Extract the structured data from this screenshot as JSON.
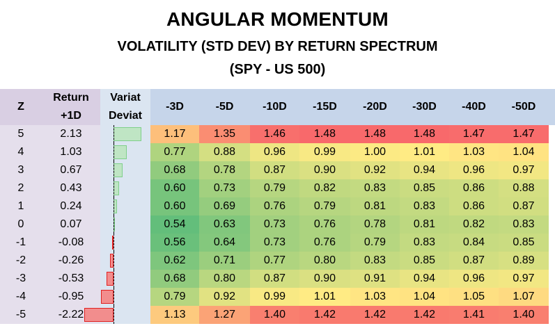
{
  "title": "ANGULAR MOMENTUM",
  "subtitle": "VOLATILITY (STD DEV) BY RETURN SPECTRUM",
  "subtitle2": "(SPY - US 500)",
  "headers": {
    "z": "Z",
    "return_l1": "Return",
    "return_l2": "+1D",
    "variat_l1": "Variat",
    "variat_l2": "Deviat",
    "periods": [
      "-3D",
      "-5D",
      "-10D",
      "-15D",
      "-20D",
      "-30D",
      "-40D",
      "-50D"
    ]
  },
  "colors": {
    "heat_low": "#63be7b",
    "heat_mid": "#ffeb84",
    "heat_high": "#f8696b",
    "bar_positive": "#bfe5c4",
    "bar_negative": "#f28d8d"
  },
  "chart_data": {
    "type": "heatmap",
    "title": "ANGULAR MOMENTUM",
    "subtitle": "VOLATILITY (STD DEV) BY RETURN SPECTRUM (SPY - US 500)",
    "columns": [
      "-3D",
      "-5D",
      "-10D",
      "-15D",
      "-20D",
      "-30D",
      "-40D",
      "-50D"
    ],
    "rows": [
      {
        "z": "5",
        "ret": "2.13",
        "ret_value": 2.13,
        "values": [
          1.17,
          1.35,
          1.46,
          1.48,
          1.48,
          1.48,
          1.47,
          1.47
        ]
      },
      {
        "z": "4",
        "ret": "1.03",
        "ret_value": 1.03,
        "values": [
          0.77,
          0.88,
          0.96,
          0.99,
          1.0,
          1.01,
          1.03,
          1.04
        ]
      },
      {
        "z": "3",
        "ret": "0.67",
        "ret_value": 0.67,
        "values": [
          0.68,
          0.78,
          0.87,
          0.9,
          0.92,
          0.94,
          0.96,
          0.97
        ]
      },
      {
        "z": "2",
        "ret": "0.43",
        "ret_value": 0.43,
        "values": [
          0.6,
          0.73,
          0.79,
          0.82,
          0.83,
          0.85,
          0.86,
          0.88
        ]
      },
      {
        "z": "1",
        "ret": "0.24",
        "ret_value": 0.24,
        "values": [
          0.6,
          0.69,
          0.76,
          0.79,
          0.81,
          0.83,
          0.86,
          0.87
        ]
      },
      {
        "z": "0",
        "ret": "0.07",
        "ret_value": 0.07,
        "values": [
          0.54,
          0.63,
          0.73,
          0.76,
          0.78,
          0.81,
          0.82,
          0.83
        ]
      },
      {
        "z": "-1",
        "ret": "-0.08",
        "ret_value": -0.08,
        "values": [
          0.56,
          0.64,
          0.73,
          0.76,
          0.79,
          0.83,
          0.84,
          0.85
        ]
      },
      {
        "z": "-2",
        "ret": "-0.26",
        "ret_value": -0.26,
        "values": [
          0.62,
          0.71,
          0.77,
          0.8,
          0.83,
          0.85,
          0.87,
          0.89
        ]
      },
      {
        "z": "-3",
        "ret": "-0.53",
        "ret_value": -0.53,
        "values": [
          0.68,
          0.8,
          0.87,
          0.9,
          0.91,
          0.94,
          0.96,
          0.97
        ]
      },
      {
        "z": "-4",
        "ret": "-0.95",
        "ret_value": -0.95,
        "values": [
          0.79,
          0.92,
          0.99,
          1.01,
          1.03,
          1.04,
          1.05,
          1.07
        ]
      },
      {
        "z": "-5",
        "ret": "-2.22",
        "ret_value": -2.22,
        "values": [
          1.13,
          1.27,
          1.4,
          1.42,
          1.42,
          1.42,
          1.41,
          1.4
        ]
      }
    ]
  }
}
